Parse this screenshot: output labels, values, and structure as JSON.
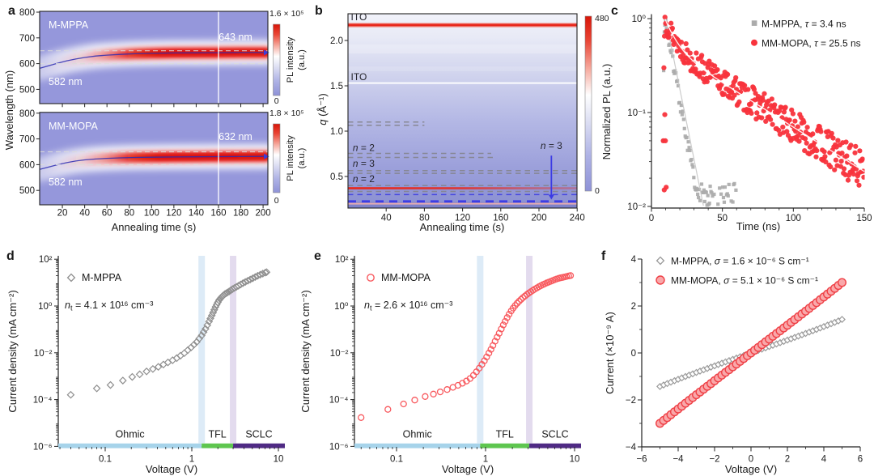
{
  "chart_data": [
    {
      "panel": "a",
      "type": "heatmap",
      "xlabel": "Annealing time (s)",
      "ylabel": "Wavelength (nm)",
      "x_ticks": [
        20,
        40,
        60,
        80,
        100,
        120,
        140,
        160,
        180,
        200
      ],
      "y_ticks": [
        800,
        700,
        600,
        500
      ],
      "xlim": [
        0,
        204
      ],
      "vline_s": 160,
      "dashed_nm": [
        650,
        600
      ],
      "subpanels": [
        {
          "name": "M-MPPA",
          "initial_peak": "582 nm",
          "final_peak": "643 nm",
          "final_peak_nm": 643,
          "colorbar": {
            "max": "1.6 × 10⁵",
            "min": "0",
            "label_line1": "PL intensity",
            "label_line2": "(a.u.)"
          },
          "peak_curve_s_nm": [
            [
              0,
              582
            ],
            [
              8,
              592
            ],
            [
              16,
              602
            ],
            [
              24,
              611
            ],
            [
              32,
              618
            ],
            [
              40,
              624
            ],
            [
              50,
              629.5
            ],
            [
              60,
              633
            ],
            [
              72,
              636
            ],
            [
              85,
              638.5
            ],
            [
              100,
              640
            ],
            [
              120,
              641.5
            ],
            [
              140,
              642.2
            ],
            [
              160,
              642.6
            ],
            [
              180,
              643
            ],
            [
              203,
              643
            ]
          ]
        },
        {
          "name": "MM-MOPA",
          "initial_peak": "582 nm",
          "final_peak": "632 nm",
          "final_peak_nm": 632,
          "colorbar": {
            "max": "1.8 × 10⁵",
            "min": "0",
            "label_line1": "PL intensity",
            "label_line2": "(a.u.)"
          },
          "peak_curve_s_nm": [
            [
              0,
              582
            ],
            [
              8,
              591
            ],
            [
              16,
              600
            ],
            [
              24,
              608
            ],
            [
              32,
              614
            ],
            [
              40,
              618.5
            ],
            [
              50,
              622
            ],
            [
              60,
              624.5
            ],
            [
              72,
              626.5
            ],
            [
              85,
              628
            ],
            [
              100,
              629
            ],
            [
              120,
              630
            ],
            [
              140,
              630.6
            ],
            [
              160,
              631
            ],
            [
              180,
              631.6
            ],
            [
              203,
              632
            ]
          ]
        }
      ]
    },
    {
      "panel": "b",
      "type": "heatmap",
      "xlabel": "Annealing time (s)",
      "ylabel_var": "q",
      "ylabel_rest": " (Å⁻¹)",
      "x_ticks": [
        40,
        80,
        120,
        160,
        200,
        240
      ],
      "y_ticks": [
        "0.5",
        "1.0",
        "1.5",
        "2.0"
      ],
      "y_tick_vals": [
        0.5,
        1.0,
        1.5,
        2.0
      ],
      "xlim": [
        0,
        240
      ],
      "ylim": [
        0.15,
        2.29
      ],
      "colorbar": {
        "max": "480",
        "min": "0"
      },
      "lines": [
        {
          "kind": "red",
          "q": 2.17,
          "x0": 0,
          "x1": 240
        },
        {
          "kind": "white",
          "q": 1.53,
          "x0": 0,
          "x1": 240
        },
        {
          "kind": "gray-dash",
          "q": 1.1,
          "x0": 0,
          "x1": 80
        },
        {
          "kind": "gray-dash",
          "q": 1.065,
          "x0": 0,
          "x1": 80
        },
        {
          "kind": "gray-dash",
          "q": 0.755,
          "x0": 0,
          "x1": 150
        },
        {
          "kind": "gray-dash",
          "q": 0.71,
          "x0": 0,
          "x1": 155
        },
        {
          "kind": "gray-dash",
          "q": 0.565,
          "x0": 0,
          "x1": 240
        },
        {
          "kind": "gray-dash",
          "q": 0.535,
          "x0": 0,
          "x1": 240
        },
        {
          "kind": "gray-dash",
          "q": 0.4,
          "x0": 0,
          "x1": 240
        },
        {
          "kind": "red",
          "q": 0.37,
          "x0": 0,
          "x1": 240,
          "fade": true
        },
        {
          "kind": "gray-dash",
          "q": 0.335,
          "x0": 0,
          "x1": 240
        },
        {
          "kind": "glow",
          "q": 0.285,
          "x0": 0,
          "x1": 240
        },
        {
          "kind": "blue-dash",
          "q": 0.3,
          "x0": 0,
          "x1": 240
        },
        {
          "kind": "blue-dash-thick",
          "q": 0.225,
          "x0": 0,
          "x1": 240
        },
        {
          "kind": "pink",
          "q": 0.2,
          "x0": 0,
          "x1": 240
        }
      ],
      "text_labels": [
        {
          "text": "ITO",
          "q": 2.26,
          "x_s": 3
        },
        {
          "text": "ITO",
          "q": 1.6,
          "x_s": 3
        },
        {
          "var": "n",
          "rest": " = 2",
          "q": 0.8,
          "x_s": 5
        },
        {
          "var": "n",
          "rest": " = 3",
          "q": 0.625,
          "x_s": 5
        },
        {
          "var": "n",
          "rest": " = 2",
          "q": 0.455,
          "x_s": 5
        },
        {
          "var": "n",
          "rest": " = 3",
          "q": 0.82,
          "x_s": 213,
          "anchor": "middle"
        }
      ],
      "arrow": {
        "x_s": 213,
        "q_from": 0.73,
        "q_to": 0.245
      }
    },
    {
      "panel": "c",
      "type": "scatter",
      "xlabel": "Time (ns)",
      "ylabel": "Normalized PL (a.u.)",
      "x_ticks": [
        0,
        50,
        100,
        150
      ],
      "y_ticks": [
        "10⁰",
        "10⁻¹",
        "10⁻²"
      ],
      "ylog_decades": [
        0,
        -1,
        -2
      ],
      "xlim": [
        0,
        150
      ],
      "series": [
        {
          "name": "M-MPPA",
          "legend_pre": "M-MPPA, ",
          "legend_var": "τ",
          "legend_post": " = 3.4 ns",
          "marker": "square",
          "color": "#ababab",
          "model": {
            "t0": 9.5,
            "rise": [
              [
                8,
                0.05
              ],
              [
                8.6,
                0.28
              ],
              [
                9.1,
                0.72
              ]
            ],
            "tau": 5.2,
            "floor": 0.013,
            "t_end": 60,
            "step": 0.55,
            "noise": 0.18
          }
        },
        {
          "name": "MM-MOPA",
          "legend_pre": "MM-MOPA, ",
          "legend_var": "τ",
          "legend_post": " = 25.5 ns",
          "marker": "circle",
          "color": "#f8333c",
          "model": {
            "t0": 9.5,
            "rise": [
              [
                8.3,
                0.05
              ],
              [
                8.8,
                0.3
              ],
              [
                9.2,
                0.65
              ]
            ],
            "a1": 0.5,
            "tau1": 7,
            "a2": 0.5,
            "tau2": 46,
            "t_end": 150,
            "step": 0.48,
            "noise": 0.13,
            "outliers": [
              [
                9.4,
                0.095
              ],
              [
                9.8,
                0.05
              ],
              [
                10.4,
                0.016
              ],
              [
                9.0,
                0.015
              ]
            ]
          }
        }
      ]
    },
    {
      "panel": "d",
      "type": "loglog",
      "legend": "M-MPPA",
      "marker": "diamond",
      "color": "#8f8f8f",
      "ann_var": "n",
      "ann_sub": "t",
      "ann_rest": " = 4.1 × 10¹⁶ cm⁻³",
      "xlabel": "Voltage (V)",
      "ylabel": "Current density (mA cm⁻²)",
      "x_ticks": [
        "0.1",
        "1",
        "10"
      ],
      "y_ticks": [
        "10²",
        "10⁰",
        "10⁻²",
        "10⁻⁴",
        "10⁻⁶"
      ],
      "y_tick_exp": [
        2,
        0,
        -2,
        -4,
        -6
      ],
      "regions": [
        {
          "label": "Ohmic",
          "color": "#a6d3ea"
        },
        {
          "label": "TFL",
          "color": "#5ec64f"
        },
        {
          "label": "SCLC",
          "color": "#4f2a84"
        }
      ],
      "vbands_v": [
        1.3,
        3.0
      ],
      "vband_colors": [
        "#d7e7f6",
        "#e0d7ec"
      ],
      "anchors_v_j": [
        [
          0.04,
          0.00016
        ],
        [
          0.08,
          0.0003
        ],
        [
          0.115,
          0.00042
        ],
        [
          0.16,
          0.00065
        ],
        [
          0.2,
          0.0009
        ],
        [
          0.25,
          0.0012
        ],
        [
          0.3,
          0.0016
        ],
        [
          0.4,
          0.0024
        ],
        [
          0.5,
          0.0035
        ],
        [
          0.65,
          0.0055
        ],
        [
          0.8,
          0.009
        ],
        [
          1.0,
          0.018
        ],
        [
          1.15,
          0.03
        ],
        [
          1.3,
          0.055
        ],
        [
          1.45,
          0.11
        ],
        [
          1.6,
          0.24
        ],
        [
          1.75,
          0.5
        ],
        [
          1.9,
          1.0
        ],
        [
          2.05,
          1.7
        ],
        [
          2.2,
          2.4
        ],
        [
          2.4,
          3.2
        ],
        [
          2.7,
          4.2
        ],
        [
          3.0,
          5.5
        ],
        [
          3.5,
          7.5
        ],
        [
          4.0,
          10
        ],
        [
          5.0,
          15
        ],
        [
          6.0,
          21
        ],
        [
          7.3,
          28
        ]
      ],
      "points_v": [
        0.04,
        0.08,
        0.115,
        0.16,
        0.205,
        0.25,
        0.3,
        0.355,
        0.41,
        0.47,
        0.53,
        0.6,
        0.67,
        0.74,
        0.82,
        0.9,
        0.98,
        1.06,
        1.14,
        1.22,
        1.3,
        1.37,
        1.44,
        1.51,
        1.58,
        1.64,
        1.7,
        1.76,
        1.82,
        1.88,
        1.94,
        2.0,
        2.06,
        2.12,
        2.18,
        2.25,
        2.32,
        2.4,
        2.49,
        2.59,
        2.7,
        2.82,
        2.95,
        3.1,
        3.27,
        3.46,
        3.67,
        3.9,
        4.15,
        4.43,
        4.73,
        5.05,
        5.4,
        5.77,
        6.17,
        6.6,
        7.05,
        7.3
      ]
    },
    {
      "panel": "e",
      "type": "loglog",
      "legend": "MM-MOPA",
      "marker": "circle",
      "color": "#f8595e",
      "ann_var": "n",
      "ann_sub": "t",
      "ann_rest": " = 2.6 × 10¹⁶ cm⁻³",
      "xlabel": "Voltage (V)",
      "ylabel": "Current density (mA cm⁻²)",
      "x_ticks": [
        "0.1",
        "1",
        "10"
      ],
      "y_ticks": [
        "10²",
        "10⁰",
        "10⁻²",
        "10⁻⁴",
        "10⁻⁶"
      ],
      "y_tick_exp": [
        2,
        0,
        -2,
        -4,
        -6
      ],
      "regions": [
        {
          "label": "Ohmic",
          "color": "#a6d3ea"
        },
        {
          "label": "TFL",
          "color": "#5ec64f"
        },
        {
          "label": "SCLC",
          "color": "#4f2a84"
        }
      ],
      "vbands_v": [
        0.87,
        3.1
      ],
      "vband_colors": [
        "#d7e7f6",
        "#e0d7ec"
      ],
      "anchors_v_j": [
        [
          0.04,
          1.7e-05
        ],
        [
          0.08,
          3.8e-05
        ],
        [
          0.12,
          6.5e-05
        ],
        [
          0.16,
          9.5e-05
        ],
        [
          0.21,
          0.000135
        ],
        [
          0.27,
          0.00018
        ],
        [
          0.34,
          0.00024
        ],
        [
          0.42,
          0.00032
        ],
        [
          0.5,
          0.00042
        ],
        [
          0.58,
          0.00055
        ],
        [
          0.66,
          0.00075
        ],
        [
          0.75,
          0.0012
        ],
        [
          0.85,
          0.0022
        ],
        [
          0.95,
          0.004
        ],
        [
          1.05,
          0.0075
        ],
        [
          1.15,
          0.014
        ],
        [
          1.3,
          0.035
        ],
        [
          1.45,
          0.08
        ],
        [
          1.6,
          0.17
        ],
        [
          1.75,
          0.32
        ],
        [
          1.9,
          0.55
        ],
        [
          2.1,
          0.95
        ],
        [
          2.3,
          1.4
        ],
        [
          2.6,
          2.2
        ],
        [
          3.0,
          3.4
        ],
        [
          3.5,
          5.0
        ],
        [
          4.0,
          6.8
        ],
        [
          4.8,
          9.5
        ],
        [
          5.6,
          12
        ],
        [
          6.5,
          15
        ],
        [
          7.5,
          17
        ],
        [
          9.0,
          20
        ]
      ],
      "points_v": [
        0.04,
        0.08,
        0.12,
        0.16,
        0.21,
        0.26,
        0.31,
        0.37,
        0.43,
        0.49,
        0.55,
        0.61,
        0.67,
        0.73,
        0.79,
        0.85,
        0.91,
        0.97,
        1.03,
        1.09,
        1.15,
        1.21,
        1.28,
        1.35,
        1.42,
        1.5,
        1.58,
        1.66,
        1.75,
        1.84,
        1.94,
        2.04,
        2.15,
        2.26,
        2.38,
        2.5,
        2.63,
        2.77,
        2.92,
        3.07,
        3.23,
        3.4,
        3.58,
        3.77,
        3.97,
        4.18,
        4.4,
        4.63,
        4.88,
        5.13,
        5.4,
        5.69,
        5.99,
        6.3,
        6.63,
        6.98,
        7.35,
        7.74,
        8.15,
        8.58,
        9.0
      ]
    },
    {
      "panel": "f",
      "type": "iv-linear",
      "xlabel": "Voltage (V)",
      "ylabel": "Current (×10⁻⁹ A)",
      "x_ticks": [
        "−6",
        "−4",
        "−2",
        "0",
        "2",
        "4",
        "6"
      ],
      "x_tick_vals": [
        -6,
        -4,
        -2,
        0,
        2,
        4,
        6
      ],
      "y_ticks": [
        "4",
        "2",
        "0",
        "−2",
        "−4"
      ],
      "y_tick_vals": [
        4,
        2,
        0,
        -2,
        -4
      ],
      "xlim": [
        -6,
        6
      ],
      "ylim": [
        -4,
        4
      ],
      "series": [
        {
          "name": "M-MPPA",
          "legend_pre": "M-MPPA, ",
          "legend_var": "σ",
          "legend_post": " = 1.6 × 10⁻⁶ S cm⁻¹",
          "marker": "diamond",
          "color": "#9a9a9a",
          "fill": "#ffffff",
          "slope": 0.272,
          "cubic": 0.00055,
          "v_min": -5,
          "v_max": 5,
          "step": 0.2
        },
        {
          "name": "MM-MOPA",
          "legend_pre": "MM-MOPA, ",
          "legend_var": "σ",
          "legend_post": " = 5.1 × 10⁻⁶ S cm⁻¹",
          "marker": "circle",
          "color": "#ef4046",
          "fill": "#f9a8aa",
          "slope": 0.59,
          "cubic": 0.0004,
          "v_min": -5,
          "v_max": 5,
          "step": 0.2
        }
      ]
    }
  ]
}
